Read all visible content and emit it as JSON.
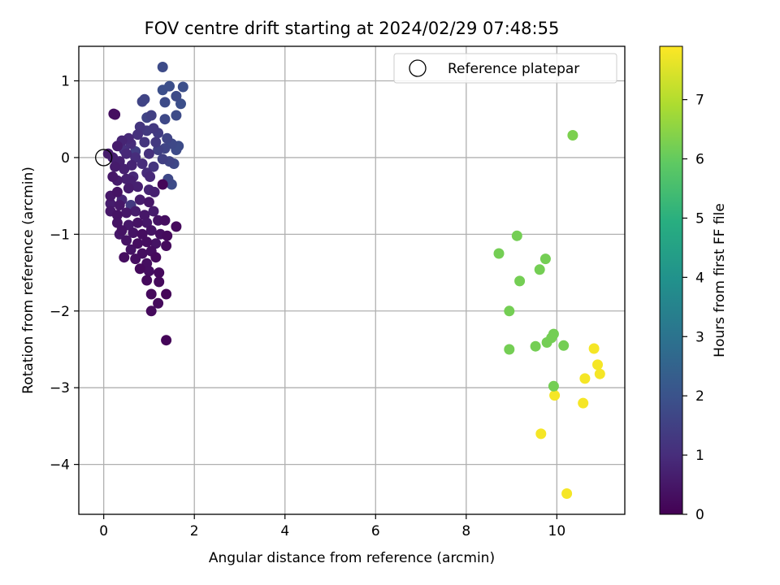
{
  "chart_data": {
    "type": "scatter",
    "title": "FOV centre drift starting at 2024/02/29 07:48:55",
    "xlabel": "Angular distance from reference (arcmin)",
    "ylabel": "Rotation from reference (arcmin)",
    "xlim": [
      -0.55,
      11.5
    ],
    "ylim": [
      -4.65,
      1.45
    ],
    "xticks": [
      0,
      2,
      4,
      6,
      8,
      10
    ],
    "yticks": [
      1,
      0,
      -1,
      -2,
      -3,
      -4
    ],
    "xtick_labels": [
      "0",
      "2",
      "4",
      "6",
      "8",
      "10"
    ],
    "ytick_labels": [
      "1",
      "0",
      "−1",
      "−2",
      "−3",
      "−4"
    ],
    "grid": true,
    "legend": {
      "position": "top-right",
      "entries": [
        "Reference platepar"
      ]
    },
    "colormap": "viridis",
    "colorbar": {
      "label": "Hours from first FF file",
      "range": [
        0,
        7.9
      ],
      "ticks": [
        0,
        1,
        2,
        3,
        4,
        5,
        6,
        7
      ],
      "tick_labels": [
        "0",
        "1",
        "2",
        "3",
        "4",
        "5",
        "6",
        "7"
      ]
    },
    "reference_point": {
      "x": 0,
      "y": 0
    },
    "points": [
      [
        1.3,
        1.18,
        1.8
      ],
      [
        1.45,
        0.93,
        1.9
      ],
      [
        1.75,
        0.92,
        1.9
      ],
      [
        1.3,
        0.88,
        1.9
      ],
      [
        1.6,
        0.8,
        1.8
      ],
      [
        1.35,
        0.72,
        1.8
      ],
      [
        1.7,
        0.7,
        1.9
      ],
      [
        0.85,
        0.73,
        1.6
      ],
      [
        0.9,
        0.76,
        1.6
      ],
      [
        1.05,
        0.55,
        1.5
      ],
      [
        0.95,
        0.52,
        1.6
      ],
      [
        1.6,
        0.55,
        1.8
      ],
      [
        1.35,
        0.5,
        1.7
      ],
      [
        0.22,
        0.57,
        0.3
      ],
      [
        0.25,
        0.56,
        0.3
      ],
      [
        0.8,
        0.4,
        1.2
      ],
      [
        1.1,
        0.38,
        1.3
      ],
      [
        1.2,
        0.32,
        1.4
      ],
      [
        1.4,
        0.25,
        1.6
      ],
      [
        1.5,
        0.18,
        1.7
      ],
      [
        1.65,
        0.15,
        1.8
      ],
      [
        0.9,
        0.2,
        1.2
      ],
      [
        0.6,
        0.18,
        1.0
      ],
      [
        0.3,
        0.15,
        0.6
      ],
      [
        0.1,
        0.05,
        0.6
      ],
      [
        0.2,
        0.0,
        0.7
      ],
      [
        0.35,
        -0.05,
        0.7
      ],
      [
        0.5,
        0.05,
        0.9
      ],
      [
        0.7,
        0.0,
        1.0
      ],
      [
        1.0,
        0.05,
        1.1
      ],
      [
        1.3,
        -0.02,
        1.5
      ],
      [
        1.45,
        -0.05,
        1.6
      ],
      [
        1.55,
        -0.08,
        1.7
      ],
      [
        1.6,
        0.1,
        1.8
      ],
      [
        1.35,
        0.12,
        1.6
      ],
      [
        1.15,
        0.2,
        1.3
      ],
      [
        0.95,
        0.35,
        1.3
      ],
      [
        0.75,
        0.3,
        1.1
      ],
      [
        0.55,
        0.25,
        0.9
      ],
      [
        0.4,
        0.22,
        0.8
      ],
      [
        0.25,
        -0.12,
        0.6
      ],
      [
        0.45,
        -0.15,
        0.7
      ],
      [
        0.62,
        -0.1,
        0.8
      ],
      [
        0.85,
        -0.08,
        1.0
      ],
      [
        1.1,
        -0.12,
        1.2
      ],
      [
        0.2,
        -0.25,
        0.5
      ],
      [
        0.3,
        -0.3,
        0.6
      ],
      [
        0.5,
        -0.28,
        0.7
      ],
      [
        0.65,
        -0.25,
        0.9
      ],
      [
        0.95,
        -0.2,
        1.0
      ],
      [
        1.42,
        -0.28,
        1.7
      ],
      [
        1.5,
        -0.35,
        1.8
      ],
      [
        1.3,
        -0.35,
        0.1
      ],
      [
        0.15,
        -0.5,
        0.5
      ],
      [
        0.3,
        -0.45,
        0.4
      ],
      [
        0.55,
        -0.4,
        0.6
      ],
      [
        0.75,
        -0.38,
        0.7
      ],
      [
        1.0,
        -0.42,
        0.8
      ],
      [
        1.12,
        -0.45,
        0.7
      ],
      [
        0.15,
        -0.6,
        0.6
      ],
      [
        0.35,
        -0.62,
        0.5
      ],
      [
        0.6,
        -0.62,
        1.3
      ],
      [
        0.8,
        -0.55,
        0.6
      ],
      [
        1.0,
        -0.58,
        0.5
      ],
      [
        0.15,
        -0.7,
        0.5
      ],
      [
        0.3,
        -0.75,
        0.4
      ],
      [
        0.5,
        -0.72,
        0.5
      ],
      [
        0.7,
        -0.7,
        0.6
      ],
      [
        0.9,
        -0.75,
        0.5
      ],
      [
        1.1,
        -0.7,
        0.6
      ],
      [
        0.3,
        -0.85,
        0.4
      ],
      [
        0.55,
        -0.88,
        0.5
      ],
      [
        0.75,
        -0.85,
        0.4
      ],
      [
        0.95,
        -0.85,
        0.5
      ],
      [
        1.2,
        -0.82,
        0.4
      ],
      [
        1.35,
        -0.82,
        0.3
      ],
      [
        1.6,
        -0.9,
        0.2
      ],
      [
        0.4,
        -0.95,
        0.4
      ],
      [
        0.65,
        -0.98,
        0.4
      ],
      [
        0.85,
        -1.0,
        0.3
      ],
      [
        1.05,
        -0.95,
        0.4
      ],
      [
        1.25,
        -1.0,
        0.3
      ],
      [
        1.4,
        -1.02,
        0.2
      ],
      [
        0.5,
        -1.08,
        0.4
      ],
      [
        0.75,
        -1.12,
        0.3
      ],
      [
        0.95,
        -1.1,
        0.3
      ],
      [
        1.15,
        -1.12,
        0.4
      ],
      [
        0.35,
        -1.0,
        0.5
      ],
      [
        0.6,
        -1.2,
        0.4
      ],
      [
        0.85,
        -1.25,
        0.3
      ],
      [
        1.05,
        -1.22,
        0.3
      ],
      [
        1.38,
        -1.15,
        0.2
      ],
      [
        0.45,
        -1.3,
        0.3
      ],
      [
        0.7,
        -1.32,
        0.3
      ],
      [
        0.95,
        -1.38,
        0.3
      ],
      [
        1.15,
        -1.3,
        0.2
      ],
      [
        0.8,
        -1.45,
        0.2
      ],
      [
        1.0,
        -1.48,
        0.3
      ],
      [
        1.22,
        -1.5,
        0.2
      ],
      [
        0.95,
        -1.6,
        0.2
      ],
      [
        1.22,
        -1.62,
        0.2
      ],
      [
        1.05,
        -1.78,
        0.2
      ],
      [
        1.38,
        -1.78,
        0.1
      ],
      [
        1.2,
        -1.9,
        0.2
      ],
      [
        1.05,
        -2.0,
        0.2
      ],
      [
        1.38,
        -2.38,
        0.1
      ],
      [
        0.6,
        -0.3,
        0.7
      ],
      [
        1.02,
        -0.25,
        0.9
      ],
      [
        0.4,
        -0.55,
        0.8
      ],
      [
        0.7,
        0.08,
        1.4
      ],
      [
        0.45,
        0.1,
        1.1
      ],
      [
        1.2,
        0.1,
        1.5
      ],
      [
        10.35,
        0.29,
        6.3
      ],
      [
        9.12,
        -1.02,
        6.2
      ],
      [
        8.72,
        -1.25,
        6.2
      ],
      [
        9.75,
        -1.32,
        6.2
      ],
      [
        9.62,
        -1.46,
        6.2
      ],
      [
        9.18,
        -1.61,
        6.2
      ],
      [
        8.95,
        -2.0,
        6.2
      ],
      [
        9.93,
        -2.3,
        6.2
      ],
      [
        9.88,
        -2.35,
        6.2
      ],
      [
        9.78,
        -2.41,
        6.2
      ],
      [
        10.15,
        -2.45,
        6.2
      ],
      [
        9.53,
        -2.46,
        6.2
      ],
      [
        8.95,
        -2.5,
        6.2
      ],
      [
        9.93,
        -2.98,
        6.2
      ],
      [
        10.82,
        -2.49,
        7.8
      ],
      [
        10.9,
        -2.7,
        7.8
      ],
      [
        10.95,
        -2.82,
        7.8
      ],
      [
        10.62,
        -2.88,
        7.8
      ],
      [
        9.95,
        -3.1,
        7.8
      ],
      [
        10.58,
        -3.2,
        7.8
      ],
      [
        9.65,
        -3.6,
        7.8
      ],
      [
        10.22,
        -4.38,
        7.8
      ]
    ]
  }
}
